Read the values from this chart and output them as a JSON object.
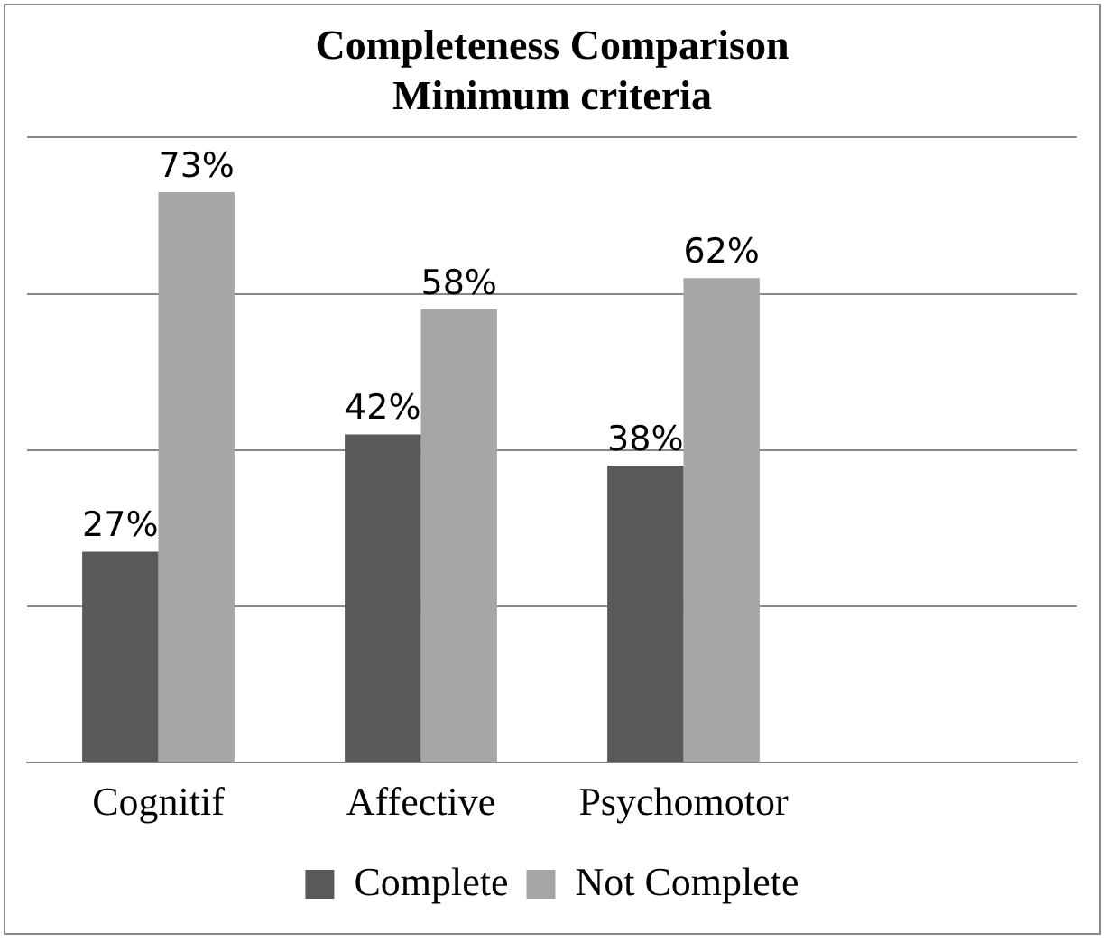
{
  "chart_data": {
    "type": "bar",
    "title": "Completeness Comparison\nMinimum criteria",
    "categories": [
      "Cognitif",
      "Affective",
      "Psychomotor",
      null
    ],
    "series": [
      {
        "name": "Complete",
        "color": "#595959",
        "values": [
          27,
          42,
          38,
          null
        ],
        "value_labels": [
          "27%",
          "42%",
          "38%",
          null
        ]
      },
      {
        "name": "Not Complete",
        "color": "#a6a6a6",
        "values": [
          73,
          58,
          62,
          null
        ],
        "value_labels": [
          "73%",
          "58%",
          "62%",
          null
        ]
      }
    ],
    "ylim": [
      0,
      80
    ],
    "yticks": [
      {
        "value": 0,
        "label": null
      },
      {
        "value": 20,
        "label": null
      },
      {
        "value": 40,
        "label": null
      },
      {
        "value": 60,
        "label": null
      },
      {
        "value": 80,
        "label": null
      }
    ],
    "grid": "y",
    "legend": "bottom",
    "tick_labels": "x"
  }
}
